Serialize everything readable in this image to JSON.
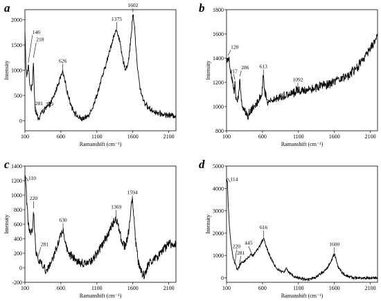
{
  "chart_data": [
    {
      "panel": "a",
      "type": "line",
      "xlabel": "Ramanshift (cm⁻¹)",
      "ylabel": "Intensity",
      "xlim": [
        100,
        2200
      ],
      "ylim": [
        -200,
        2200
      ],
      "xticks": [
        100,
        600,
        1100,
        1600,
        2100
      ],
      "yticks": [
        0,
        500,
        1000,
        1500,
        2000
      ],
      "series": [
        {
          "anchors": [
            [
              100,
              1750
            ],
            [
              105,
              1500
            ],
            [
              115,
              1050
            ],
            [
              125,
              900
            ],
            [
              135,
              930
            ],
            [
              146,
              1120
            ],
            [
              155,
              950
            ],
            [
              170,
              700
            ],
            [
              190,
              620
            ],
            [
              205,
              750
            ],
            [
              218,
              1220
            ],
            [
              226,
              800
            ],
            [
              240,
              250
            ],
            [
              260,
              130
            ],
            [
              281,
              60
            ],
            [
              300,
              40
            ],
            [
              315,
              130
            ],
            [
              329,
              160
            ],
            [
              350,
              180
            ],
            [
              400,
              260
            ],
            [
              450,
              330
            ],
            [
              500,
              470
            ],
            [
              560,
              720
            ],
            [
              600,
              880
            ],
            [
              626,
              960
            ],
            [
              660,
              760
            ],
            [
              700,
              500
            ],
            [
              750,
              280
            ],
            [
              800,
              140
            ],
            [
              850,
              60
            ],
            [
              900,
              30
            ],
            [
              950,
              60
            ],
            [
              1000,
              150
            ],
            [
              1050,
              300
            ],
            [
              1100,
              500
            ],
            [
              1150,
              750
            ],
            [
              1200,
              980
            ],
            [
              1250,
              1230
            ],
            [
              1300,
              1500
            ],
            [
              1340,
              1700
            ],
            [
              1375,
              1790
            ],
            [
              1410,
              1640
            ],
            [
              1450,
              1280
            ],
            [
              1490,
              1040
            ],
            [
              1520,
              1060
            ],
            [
              1550,
              1300
            ],
            [
              1580,
              1750
            ],
            [
              1602,
              2120
            ],
            [
              1625,
              1850
            ],
            [
              1660,
              1100
            ],
            [
              1700,
              650
            ],
            [
              1750,
              400
            ],
            [
              1800,
              280
            ],
            [
              1850,
              220
            ],
            [
              1900,
              180
            ],
            [
              1950,
              150
            ],
            [
              2000,
              130
            ],
            [
              2050,
              120
            ],
            [
              2100,
              110
            ],
            [
              2150,
              100
            ],
            [
              2200,
              100
            ]
          ],
          "noise": 50
        }
      ],
      "annotations": [
        {
          "text": "146",
          "x": 146,
          "y": 1120
        },
        {
          "text": "218",
          "x": 218,
          "y": 1220
        },
        {
          "text": "281",
          "x": 281,
          "y": 60
        },
        {
          "text": "329",
          "x": 329,
          "y": 160
        },
        {
          "text": "626",
          "x": 626,
          "y": 960
        },
        {
          "text": "1375",
          "x": 1375,
          "y": 1790
        },
        {
          "text": "1602",
          "x": 1602,
          "y": 2120
        }
      ]
    },
    {
      "panel": "b",
      "type": "line",
      "xlabel": "Ramanshift (cm⁻¹)",
      "ylabel": "Intensity",
      "xlim": [
        100,
        2200
      ],
      "ylim": [
        800,
        1800
      ],
      "xticks": [
        100,
        600,
        1100,
        1600,
        2100
      ],
      "yticks": [
        800,
        1000,
        1200,
        1400,
        1600,
        1800
      ],
      "series": [
        {
          "anchors": [
            [
              100,
              1380
            ],
            [
              110,
              1395
            ],
            [
              120,
              1410
            ],
            [
              135,
              1380
            ],
            [
              160,
              1300
            ],
            [
              190,
              1180
            ],
            [
              205,
              1120
            ],
            [
              217,
              1210
            ],
            [
              232,
              1060
            ],
            [
              250,
              1030
            ],
            [
              268,
              1090
            ],
            [
              286,
              1240
            ],
            [
              300,
              1060
            ],
            [
              330,
              1000
            ],
            [
              360,
              960
            ],
            [
              390,
              920
            ],
            [
              420,
              950
            ],
            [
              460,
              990
            ],
            [
              500,
              1020
            ],
            [
              550,
              1050
            ],
            [
              590,
              1110
            ],
            [
              613,
              1250
            ],
            [
              630,
              1140
            ],
            [
              660,
              1050
            ],
            [
              700,
              1040
            ],
            [
              750,
              1060
            ],
            [
              800,
              1070
            ],
            [
              850,
              1080
            ],
            [
              900,
              1090
            ],
            [
              950,
              1100
            ],
            [
              1000,
              1110
            ],
            [
              1050,
              1120
            ],
            [
              1092,
              1140
            ],
            [
              1150,
              1130
            ],
            [
              1200,
              1140
            ],
            [
              1300,
              1150
            ],
            [
              1400,
              1170
            ],
            [
              1500,
              1180
            ],
            [
              1600,
              1200
            ],
            [
              1700,
              1230
            ],
            [
              1800,
              1260
            ],
            [
              1900,
              1310
            ],
            [
              2000,
              1390
            ],
            [
              2100,
              1480
            ],
            [
              2150,
              1530
            ],
            [
              2200,
              1570
            ]
          ],
          "noise": 35
        }
      ],
      "annotations": [
        {
          "text": "120",
          "x": 120,
          "y": 1410
        },
        {
          "text": "217",
          "x": 217,
          "y": 1210
        },
        {
          "text": "286",
          "x": 286,
          "y": 1240
        },
        {
          "text": "613",
          "x": 613,
          "y": 1250
        },
        {
          "text": "1092",
          "x": 1092,
          "y": 1140
        }
      ]
    },
    {
      "panel": "c",
      "type": "line",
      "xlabel": "Ramanshift (cm⁻¹)",
      "ylabel": "Intensity",
      "xlim": [
        100,
        2200
      ],
      "ylim": [
        -200,
        1400
      ],
      "xticks": [
        100,
        600,
        1100,
        1600,
        2100
      ],
      "yticks": [
        -200,
        0,
        200,
        400,
        600,
        800,
        1000,
        1200,
        1400
      ],
      "series": [
        {
          "anchors": [
            [
              100,
              1230
            ],
            [
              110,
              1230
            ],
            [
              125,
              900
            ],
            [
              140,
              700
            ],
            [
              160,
              520
            ],
            [
              185,
              450
            ],
            [
              205,
              520
            ],
            [
              220,
              800
            ],
            [
              232,
              550
            ],
            [
              250,
              250
            ],
            [
              281,
              130
            ],
            [
              310,
              80
            ],
            [
              340,
              40
            ],
            [
              370,
              0
            ],
            [
              400,
              -30
            ],
            [
              440,
              20
            ],
            [
              480,
              120
            ],
            [
              530,
              250
            ],
            [
              580,
              400
            ],
            [
              610,
              480
            ],
            [
              630,
              500
            ],
            [
              660,
              350
            ],
            [
              700,
              200
            ],
            [
              750,
              150
            ],
            [
              800,
              100
            ],
            [
              850,
              80
            ],
            [
              900,
              60
            ],
            [
              950,
              60
            ],
            [
              1000,
              80
            ],
            [
              1050,
              120
            ],
            [
              1100,
              200
            ],
            [
              1150,
              280
            ],
            [
              1200,
              360
            ],
            [
              1250,
              450
            ],
            [
              1300,
              560
            ],
            [
              1340,
              640
            ],
            [
              1369,
              680
            ],
            [
              1400,
              560
            ],
            [
              1450,
              370
            ],
            [
              1490,
              300
            ],
            [
              1530,
              420
            ],
            [
              1560,
              650
            ],
            [
              1580,
              850
            ],
            [
              1594,
              920
            ],
            [
              1612,
              750
            ],
            [
              1640,
              350
            ],
            [
              1680,
              50
            ],
            [
              1720,
              -50
            ],
            [
              1760,
              -120
            ],
            [
              1800,
              0
            ],
            [
              1850,
              100
            ],
            [
              1900,
              120
            ],
            [
              1950,
              150
            ],
            [
              2000,
              200
            ],
            [
              2050,
              280
            ],
            [
              2100,
              340
            ],
            [
              2150,
              330
            ],
            [
              2200,
              300
            ]
          ],
          "noise": 55
        }
      ],
      "annotations": [
        {
          "text": "110",
          "x": 110,
          "y": 1230
        },
        {
          "text": "220",
          "x": 220,
          "y": 800
        },
        {
          "text": "281",
          "x": 281,
          "y": 130
        },
        {
          "text": "630",
          "x": 630,
          "y": 500
        },
        {
          "text": "1369",
          "x": 1369,
          "y": 680
        },
        {
          "text": "1594",
          "x": 1594,
          "y": 920
        }
      ]
    },
    {
      "panel": "d",
      "type": "line",
      "xlabel": "Ramanshift (cm⁻¹)",
      "ylabel": "Intensity",
      "xlim": [
        100,
        2200
      ],
      "ylim": [
        -200,
        5000
      ],
      "xticks": [
        100,
        600,
        1100,
        1600,
        2100
      ],
      "yticks": [
        0,
        1000,
        2000,
        3000,
        4000,
        5000
      ],
      "series": [
        {
          "anchors": [
            [
              100,
              4300
            ],
            [
              105,
              4400
            ],
            [
              114,
              4200
            ],
            [
              125,
              3200
            ],
            [
              140,
              2300
            ],
            [
              160,
              1600
            ],
            [
              180,
              1100
            ],
            [
              200,
              800
            ],
            [
              220,
              650
            ],
            [
              240,
              450
            ],
            [
              260,
              380
            ],
            [
              281,
              550
            ],
            [
              300,
              650
            ],
            [
              330,
              700
            ],
            [
              360,
              780
            ],
            [
              400,
              900
            ],
            [
              445,
              1050
            ],
            [
              470,
              1000
            ],
            [
              500,
              1150
            ],
            [
              540,
              1300
            ],
            [
              580,
              1550
            ],
            [
              616,
              1750
            ],
            [
              650,
              1450
            ],
            [
              700,
              1000
            ],
            [
              750,
              650
            ],
            [
              800,
              450
            ],
            [
              850,
              300
            ],
            [
              900,
              250
            ],
            [
              920,
              350
            ],
            [
              935,
              500
            ],
            [
              950,
              300
            ],
            [
              1000,
              150
            ],
            [
              1050,
              50
            ],
            [
              1100,
              0
            ],
            [
              1150,
              -50
            ],
            [
              1200,
              -80
            ],
            [
              1250,
              -70
            ],
            [
              1300,
              -30
            ],
            [
              1350,
              50
            ],
            [
              1400,
              150
            ],
            [
              1450,
              280
            ],
            [
              1500,
              450
            ],
            [
              1550,
              700
            ],
            [
              1580,
              950
            ],
            [
              1600,
              1050
            ],
            [
              1620,
              900
            ],
            [
              1650,
              500
            ],
            [
              1700,
              250
            ],
            [
              1750,
              120
            ],
            [
              1800,
              60
            ],
            [
              1850,
              20
            ],
            [
              1900,
              0
            ],
            [
              1950,
              -10
            ],
            [
              2000,
              -10
            ],
            [
              2050,
              0
            ],
            [
              2100,
              0
            ],
            [
              2150,
              0
            ],
            [
              2200,
              0
            ]
          ],
          "noise": 60
        }
      ],
      "annotations": [
        {
          "text": "114",
          "x": 114,
          "y": 4400
        },
        {
          "text": "220",
          "x": 220,
          "y": 650
        },
        {
          "text": "281",
          "x": 281,
          "y": 550
        },
        {
          "text": "445",
          "x": 445,
          "y": 1050
        },
        {
          "text": "616",
          "x": 616,
          "y": 1750
        },
        {
          "text": "1600",
          "x": 1600,
          "y": 1050
        }
      ]
    }
  ]
}
